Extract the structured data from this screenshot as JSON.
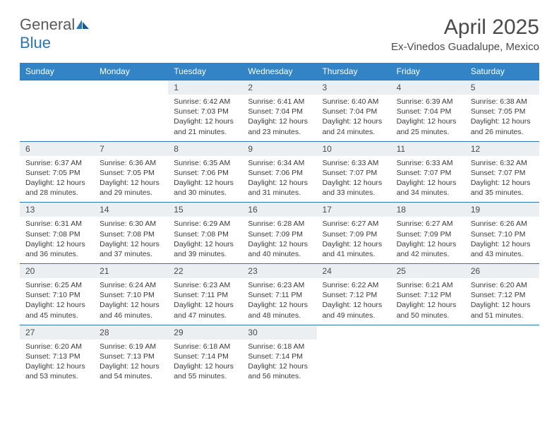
{
  "logo": {
    "text1": "General",
    "text2": "Blue"
  },
  "header": {
    "month_title": "April 2025",
    "location": "Ex-Vinedos Guadalupe, Mexico"
  },
  "colors": {
    "accent": "#3284c6",
    "accent_dark": "#2976b8",
    "day_bg": "#eceff1",
    "text": "#4a4a4a"
  },
  "day_labels": [
    "Sunday",
    "Monday",
    "Tuesday",
    "Wednesday",
    "Thursday",
    "Friday",
    "Saturday"
  ],
  "weeks": [
    [
      {
        "empty": true
      },
      {
        "empty": true
      },
      {
        "num": "1",
        "sunrise": "Sunrise: 6:42 AM",
        "sunset": "Sunset: 7:03 PM",
        "daylight": "Daylight: 12 hours and 21 minutes."
      },
      {
        "num": "2",
        "sunrise": "Sunrise: 6:41 AM",
        "sunset": "Sunset: 7:04 PM",
        "daylight": "Daylight: 12 hours and 23 minutes."
      },
      {
        "num": "3",
        "sunrise": "Sunrise: 6:40 AM",
        "sunset": "Sunset: 7:04 PM",
        "daylight": "Daylight: 12 hours and 24 minutes."
      },
      {
        "num": "4",
        "sunrise": "Sunrise: 6:39 AM",
        "sunset": "Sunset: 7:04 PM",
        "daylight": "Daylight: 12 hours and 25 minutes."
      },
      {
        "num": "5",
        "sunrise": "Sunrise: 6:38 AM",
        "sunset": "Sunset: 7:05 PM",
        "daylight": "Daylight: 12 hours and 26 minutes."
      }
    ],
    [
      {
        "num": "6",
        "sunrise": "Sunrise: 6:37 AM",
        "sunset": "Sunset: 7:05 PM",
        "daylight": "Daylight: 12 hours and 28 minutes."
      },
      {
        "num": "7",
        "sunrise": "Sunrise: 6:36 AM",
        "sunset": "Sunset: 7:05 PM",
        "daylight": "Daylight: 12 hours and 29 minutes."
      },
      {
        "num": "8",
        "sunrise": "Sunrise: 6:35 AM",
        "sunset": "Sunset: 7:06 PM",
        "daylight": "Daylight: 12 hours and 30 minutes."
      },
      {
        "num": "9",
        "sunrise": "Sunrise: 6:34 AM",
        "sunset": "Sunset: 7:06 PM",
        "daylight": "Daylight: 12 hours and 31 minutes."
      },
      {
        "num": "10",
        "sunrise": "Sunrise: 6:33 AM",
        "sunset": "Sunset: 7:07 PM",
        "daylight": "Daylight: 12 hours and 33 minutes."
      },
      {
        "num": "11",
        "sunrise": "Sunrise: 6:33 AM",
        "sunset": "Sunset: 7:07 PM",
        "daylight": "Daylight: 12 hours and 34 minutes."
      },
      {
        "num": "12",
        "sunrise": "Sunrise: 6:32 AM",
        "sunset": "Sunset: 7:07 PM",
        "daylight": "Daylight: 12 hours and 35 minutes."
      }
    ],
    [
      {
        "num": "13",
        "sunrise": "Sunrise: 6:31 AM",
        "sunset": "Sunset: 7:08 PM",
        "daylight": "Daylight: 12 hours and 36 minutes."
      },
      {
        "num": "14",
        "sunrise": "Sunrise: 6:30 AM",
        "sunset": "Sunset: 7:08 PM",
        "daylight": "Daylight: 12 hours and 37 minutes."
      },
      {
        "num": "15",
        "sunrise": "Sunrise: 6:29 AM",
        "sunset": "Sunset: 7:08 PM",
        "daylight": "Daylight: 12 hours and 39 minutes."
      },
      {
        "num": "16",
        "sunrise": "Sunrise: 6:28 AM",
        "sunset": "Sunset: 7:09 PM",
        "daylight": "Daylight: 12 hours and 40 minutes."
      },
      {
        "num": "17",
        "sunrise": "Sunrise: 6:27 AM",
        "sunset": "Sunset: 7:09 PM",
        "daylight": "Daylight: 12 hours and 41 minutes."
      },
      {
        "num": "18",
        "sunrise": "Sunrise: 6:27 AM",
        "sunset": "Sunset: 7:09 PM",
        "daylight": "Daylight: 12 hours and 42 minutes."
      },
      {
        "num": "19",
        "sunrise": "Sunrise: 6:26 AM",
        "sunset": "Sunset: 7:10 PM",
        "daylight": "Daylight: 12 hours and 43 minutes."
      }
    ],
    [
      {
        "num": "20",
        "sunrise": "Sunrise: 6:25 AM",
        "sunset": "Sunset: 7:10 PM",
        "daylight": "Daylight: 12 hours and 45 minutes."
      },
      {
        "num": "21",
        "sunrise": "Sunrise: 6:24 AM",
        "sunset": "Sunset: 7:10 PM",
        "daylight": "Daylight: 12 hours and 46 minutes."
      },
      {
        "num": "22",
        "sunrise": "Sunrise: 6:23 AM",
        "sunset": "Sunset: 7:11 PM",
        "daylight": "Daylight: 12 hours and 47 minutes."
      },
      {
        "num": "23",
        "sunrise": "Sunrise: 6:23 AM",
        "sunset": "Sunset: 7:11 PM",
        "daylight": "Daylight: 12 hours and 48 minutes."
      },
      {
        "num": "24",
        "sunrise": "Sunrise: 6:22 AM",
        "sunset": "Sunset: 7:12 PM",
        "daylight": "Daylight: 12 hours and 49 minutes."
      },
      {
        "num": "25",
        "sunrise": "Sunrise: 6:21 AM",
        "sunset": "Sunset: 7:12 PM",
        "daylight": "Daylight: 12 hours and 50 minutes."
      },
      {
        "num": "26",
        "sunrise": "Sunrise: 6:20 AM",
        "sunset": "Sunset: 7:12 PM",
        "daylight": "Daylight: 12 hours and 51 minutes."
      }
    ],
    [
      {
        "num": "27",
        "sunrise": "Sunrise: 6:20 AM",
        "sunset": "Sunset: 7:13 PM",
        "daylight": "Daylight: 12 hours and 53 minutes."
      },
      {
        "num": "28",
        "sunrise": "Sunrise: 6:19 AM",
        "sunset": "Sunset: 7:13 PM",
        "daylight": "Daylight: 12 hours and 54 minutes."
      },
      {
        "num": "29",
        "sunrise": "Sunrise: 6:18 AM",
        "sunset": "Sunset: 7:14 PM",
        "daylight": "Daylight: 12 hours and 55 minutes."
      },
      {
        "num": "30",
        "sunrise": "Sunrise: 6:18 AM",
        "sunset": "Sunset: 7:14 PM",
        "daylight": "Daylight: 12 hours and 56 minutes."
      },
      {
        "empty": true
      },
      {
        "empty": true
      },
      {
        "empty": true
      }
    ]
  ]
}
